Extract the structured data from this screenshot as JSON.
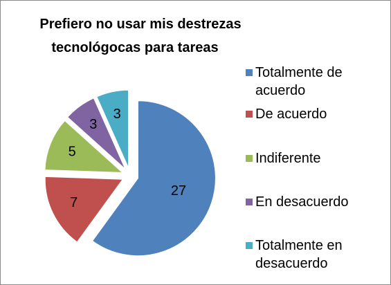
{
  "chart_data": {
    "type": "pie",
    "title": "Prefiero no usar mis destrezas tecnológocas para tareas",
    "categories": [
      "Totalmente de acuerdo",
      "De acuerdo",
      "Indiferente",
      "En desacuerdo",
      "Totalmente en desacuerdo"
    ],
    "values": [
      27,
      7,
      5,
      3,
      3
    ],
    "colors": [
      "#4f81bd",
      "#c0504d",
      "#9bbb59",
      "#8064a2",
      "#4bacc6"
    ],
    "legend": "right"
  }
}
